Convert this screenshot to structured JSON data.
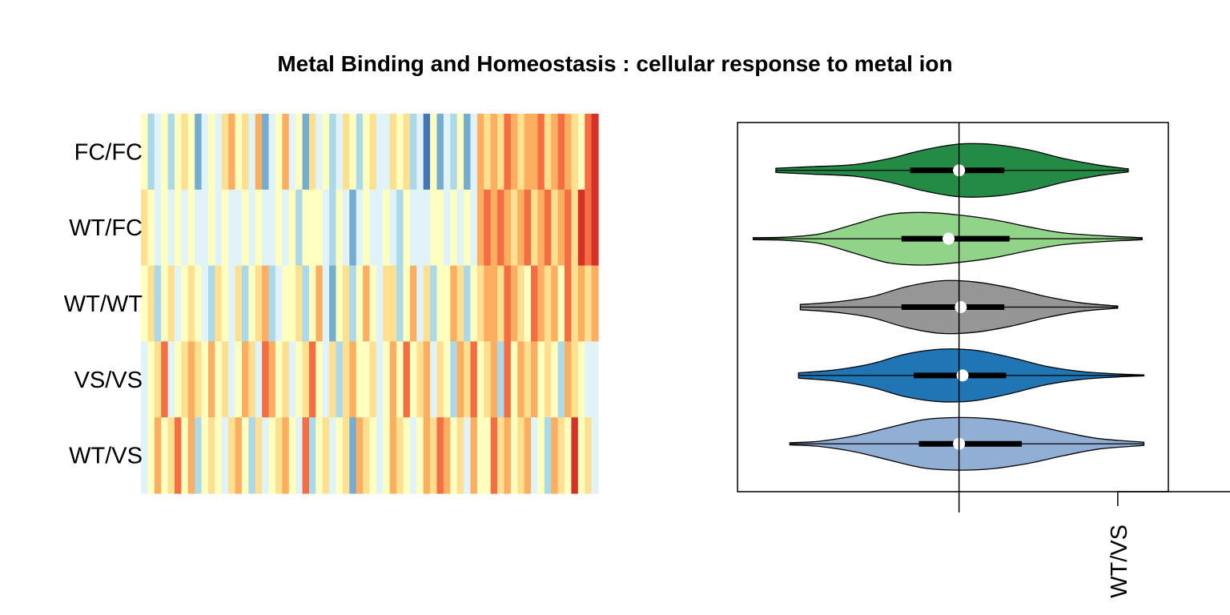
{
  "title": "Metal Binding and Homeostasis : cellular response to metal ion",
  "chart_data": [
    {
      "type": "heatmap",
      "rows": [
        "FC/FC",
        "WT/FC",
        "WT/WT",
        "VS/VS",
        "WT/VS"
      ],
      "n_columns": 68,
      "colors": [
        "#4575b4",
        "#74add1",
        "#abd9e9",
        "#e0f3f8",
        "#ffffbf",
        "#fee090",
        "#fdae61",
        "#f46d43",
        "#d73027"
      ],
      "matrix": [
        [
          4,
          2,
          3,
          4,
          2,
          4,
          5,
          4,
          1,
          3,
          4,
          3,
          5,
          6,
          4,
          5,
          3,
          6,
          1,
          3,
          4,
          6,
          3,
          4,
          1,
          5,
          3,
          4,
          2,
          3,
          5,
          4,
          2,
          4,
          5,
          3,
          3,
          5,
          4,
          5,
          2,
          3,
          0,
          4,
          1,
          3,
          2,
          4,
          1,
          3,
          6,
          5,
          6,
          5,
          7,
          6,
          5,
          6,
          6,
          7,
          5,
          6,
          7,
          6,
          5,
          4,
          7,
          8
        ],
        [
          5,
          4,
          3,
          4,
          3,
          4,
          3,
          4,
          3,
          3,
          4,
          3,
          4,
          3,
          3,
          4,
          3,
          4,
          3,
          3,
          4,
          3,
          4,
          2,
          4,
          4,
          4,
          3,
          2,
          4,
          3,
          1,
          3,
          4,
          3,
          3,
          4,
          3,
          2,
          4,
          3,
          3,
          3,
          4,
          4,
          3,
          4,
          3,
          4,
          3,
          6,
          7,
          6,
          7,
          6,
          5,
          6,
          7,
          5,
          6,
          7,
          5,
          6,
          7,
          5,
          8,
          7,
          8
        ],
        [
          4,
          5,
          2,
          4,
          5,
          3,
          4,
          5,
          4,
          3,
          2,
          5,
          4,
          3,
          5,
          2,
          4,
          5,
          6,
          2,
          3,
          4,
          4,
          5,
          2,
          4,
          6,
          3,
          1,
          4,
          5,
          2,
          4,
          6,
          4,
          3,
          5,
          5,
          2,
          4,
          6,
          3,
          5,
          2,
          4,
          4,
          6,
          5,
          2,
          4,
          5,
          6,
          6,
          5,
          7,
          6,
          5,
          4,
          7,
          6,
          5,
          6,
          4,
          7,
          5,
          6,
          5,
          6
        ],
        [
          3,
          4,
          5,
          7,
          3,
          4,
          5,
          6,
          5,
          4,
          6,
          4,
          5,
          3,
          4,
          6,
          5,
          3,
          7,
          6,
          4,
          5,
          3,
          4,
          5,
          7,
          4,
          3,
          5,
          2,
          5,
          6,
          4,
          4,
          5,
          3,
          4,
          6,
          4,
          7,
          4,
          5,
          6,
          3,
          5,
          4,
          2,
          6,
          5,
          7,
          4,
          5,
          6,
          2,
          7,
          4,
          6,
          5,
          6,
          4,
          5,
          4,
          2,
          6,
          5,
          4,
          3,
          3
        ],
        [
          3,
          4,
          6,
          4,
          5,
          7,
          4,
          6,
          2,
          4,
          5,
          4,
          3,
          5,
          6,
          4,
          2,
          5,
          3,
          4,
          5,
          6,
          4,
          3,
          7,
          2,
          4,
          5,
          3,
          4,
          5,
          1,
          6,
          5,
          4,
          3,
          4,
          6,
          5,
          4,
          3,
          4,
          6,
          5,
          7,
          6,
          4,
          5,
          3,
          6,
          4,
          4,
          7,
          5,
          6,
          4,
          5,
          6,
          3,
          4,
          2,
          6,
          5,
          4,
          8,
          4,
          5,
          3
        ]
      ]
    },
    {
      "type": "violin",
      "groups": [
        {
          "name": "",
          "color": "#238b45",
          "y": 1,
          "min": -1.05,
          "q1": -0.28,
          "median": 0,
          "q3": 0.26,
          "max": 0.97,
          "bw": 0.77,
          "kde": [
            [
              -1.05,
              0.08
            ],
            [
              -0.85,
              0.14
            ],
            [
              -0.6,
              0.22
            ],
            [
              -0.4,
              0.45
            ],
            [
              -0.2,
              0.78
            ],
            [
              0.0,
              1.0
            ],
            [
              0.2,
              0.98
            ],
            [
              0.4,
              0.78
            ],
            [
              0.6,
              0.45
            ],
            [
              0.8,
              0.2
            ],
            [
              0.97,
              0.06
            ]
          ]
        },
        {
          "name": "",
          "color": "#91d388",
          "y": 2,
          "min": -1.18,
          "q1": -0.33,
          "median": -0.06,
          "q3": 0.29,
          "max": 1.05,
          "bw": 0.77,
          "kde": [
            [
              -1.18,
              0.04
            ],
            [
              -1.0,
              0.06
            ],
            [
              -0.8,
              0.18
            ],
            [
              -0.6,
              0.55
            ],
            [
              -0.4,
              0.92
            ],
            [
              -0.2,
              1.0
            ],
            [
              0.0,
              0.9
            ],
            [
              0.2,
              0.72
            ],
            [
              0.4,
              0.45
            ],
            [
              0.6,
              0.22
            ],
            [
              0.85,
              0.1
            ],
            [
              1.05,
              0.04
            ]
          ]
        },
        {
          "name": "",
          "color": "#969696",
          "y": 3,
          "min": -0.91,
          "q1": -0.33,
          "median": 0.01,
          "q3": 0.26,
          "max": 0.91,
          "bw": 0.77,
          "kde": [
            [
              -0.91,
              0.1
            ],
            [
              -0.7,
              0.2
            ],
            [
              -0.5,
              0.4
            ],
            [
              -0.3,
              0.78
            ],
            [
              -0.1,
              1.0
            ],
            [
              0.1,
              0.95
            ],
            [
              0.3,
              0.72
            ],
            [
              0.5,
              0.4
            ],
            [
              0.7,
              0.16
            ],
            [
              0.91,
              0.04
            ]
          ]
        },
        {
          "name": "",
          "color": "#2076b4",
          "y": 4,
          "min": -0.92,
          "q1": -0.26,
          "median": 0.02,
          "q3": 0.27,
          "max": 1.06,
          "bw": 0.77,
          "kde": [
            [
              -0.92,
              0.1
            ],
            [
              -0.7,
              0.22
            ],
            [
              -0.5,
              0.45
            ],
            [
              -0.3,
              0.82
            ],
            [
              -0.1,
              1.0
            ],
            [
              0.1,
              0.95
            ],
            [
              0.3,
              0.68
            ],
            [
              0.5,
              0.35
            ],
            [
              0.7,
              0.15
            ],
            [
              0.9,
              0.06
            ],
            [
              1.06,
              0.02
            ]
          ]
        },
        {
          "name": "WT/VS",
          "color": "#91aed4",
          "y": 5,
          "min": -0.97,
          "q1": -0.23,
          "median": 0.0,
          "q3": 0.36,
          "max": 1.06,
          "bw": 0.77,
          "kde": [
            [
              -0.97,
              0.04
            ],
            [
              -0.8,
              0.1
            ],
            [
              -0.6,
              0.3
            ],
            [
              -0.4,
              0.62
            ],
            [
              -0.2,
              0.92
            ],
            [
              0.0,
              1.0
            ],
            [
              0.2,
              0.94
            ],
            [
              0.4,
              0.74
            ],
            [
              0.6,
              0.45
            ],
            [
              0.8,
              0.2
            ],
            [
              1.06,
              0.06
            ]
          ]
        }
      ],
      "xlim": [
        -1.27,
        1.2
      ],
      "ylim": [
        0.3,
        5.7
      ],
      "xticks": [
        0,
        0.91
      ],
      "tick_labels": [
        "WT/VS"
      ]
    }
  ]
}
